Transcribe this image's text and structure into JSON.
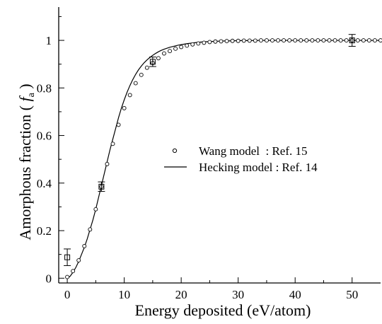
{
  "chart_data": {
    "type": "line",
    "xlabel": "Energy deposited (eV/atom)",
    "ylabel_main": "Amorphous fraction ( ",
    "ylabel_symbol": "f",
    "ylabel_sub": "a",
    "ylabel_close": " )",
    "xlim": [
      -1.5,
      55
    ],
    "ylim": [
      -0.02,
      1.14
    ],
    "x_ticks": [
      0,
      10,
      20,
      30,
      40,
      50
    ],
    "x_tick_labels": [
      "0",
      "10",
      "20",
      "30",
      "40",
      "50"
    ],
    "y_ticks": [
      0,
      0.2,
      0.4,
      0.6,
      0.8,
      1
    ],
    "y_tick_labels": [
      "0",
      "0.2",
      "0.4",
      "0.6",
      "0.8",
      "1"
    ],
    "x_minor_step": 5,
    "y_minor_step": 0.1,
    "grid": false,
    "legend_position": "right-middle",
    "series": [
      {
        "name": "Wang model  : Ref. 15",
        "marker": "open-circle",
        "x": [
          0,
          1,
          2,
          3,
          4,
          5,
          6,
          7,
          8,
          9,
          10,
          11,
          12,
          13,
          14,
          15,
          16,
          17,
          18,
          19,
          20,
          21,
          22,
          23,
          24,
          25,
          26,
          27,
          28,
          29,
          30,
          31,
          32,
          33,
          34,
          35,
          36,
          37,
          38,
          39,
          40,
          41,
          42,
          43,
          44,
          45,
          46,
          47,
          48,
          49,
          50,
          51,
          52,
          53,
          54,
          55
        ],
        "y": [
          0.005,
          0.03,
          0.075,
          0.135,
          0.205,
          0.29,
          0.385,
          0.48,
          0.565,
          0.645,
          0.715,
          0.77,
          0.82,
          0.855,
          0.885,
          0.905,
          0.925,
          0.945,
          0.955,
          0.965,
          0.972,
          0.978,
          0.983,
          0.987,
          0.99,
          0.993,
          0.995,
          0.996,
          0.997,
          0.998,
          0.998,
          0.999,
          0.999,
          0.999,
          1,
          1,
          1,
          1,
          1,
          1,
          1,
          1,
          1,
          1,
          1,
          1,
          1,
          1,
          1,
          1,
          1,
          1,
          1,
          1,
          1,
          1
        ]
      },
      {
        "name": "Hecking model : Ref. 14",
        "marker": "line",
        "x": [
          0,
          0.5,
          1,
          1.5,
          2,
          2.5,
          3,
          3.5,
          4,
          4.5,
          5,
          5.5,
          6,
          6.5,
          7,
          7.5,
          8,
          8.5,
          9,
          9.5,
          10,
          10.5,
          11,
          11.5,
          12,
          12.5,
          13,
          13.5,
          14,
          14.5,
          15,
          15.5,
          16,
          16.5,
          17,
          17.5,
          18,
          18.5,
          19,
          19.5,
          20,
          21,
          22,
          23,
          24,
          25,
          26,
          27,
          28,
          29,
          30,
          32,
          34,
          36,
          38,
          40,
          42,
          44,
          46,
          48,
          50,
          52,
          55
        ],
        "y": [
          0.0,
          0.008,
          0.025,
          0.045,
          0.07,
          0.1,
          0.13,
          0.165,
          0.205,
          0.245,
          0.29,
          0.34,
          0.39,
          0.44,
          0.49,
          0.54,
          0.585,
          0.63,
          0.675,
          0.715,
          0.75,
          0.782,
          0.81,
          0.835,
          0.857,
          0.876,
          0.892,
          0.906,
          0.918,
          0.928,
          0.937,
          0.945,
          0.952,
          0.958,
          0.963,
          0.967,
          0.971,
          0.974,
          0.977,
          0.98,
          0.982,
          0.986,
          0.989,
          0.992,
          0.994,
          0.995,
          0.996,
          0.997,
          0.998,
          0.998,
          0.999,
          0.999,
          1,
          1,
          1,
          1,
          1,
          1,
          1,
          1,
          1,
          1,
          1
        ]
      }
    ],
    "data_points": {
      "marker": "open-square",
      "x": [
        0,
        6,
        15,
        50
      ],
      "y": [
        0.088,
        0.385,
        0.91,
        1.0
      ],
      "yerr": [
        0.035,
        0.02,
        0.02,
        0.025
      ]
    }
  }
}
